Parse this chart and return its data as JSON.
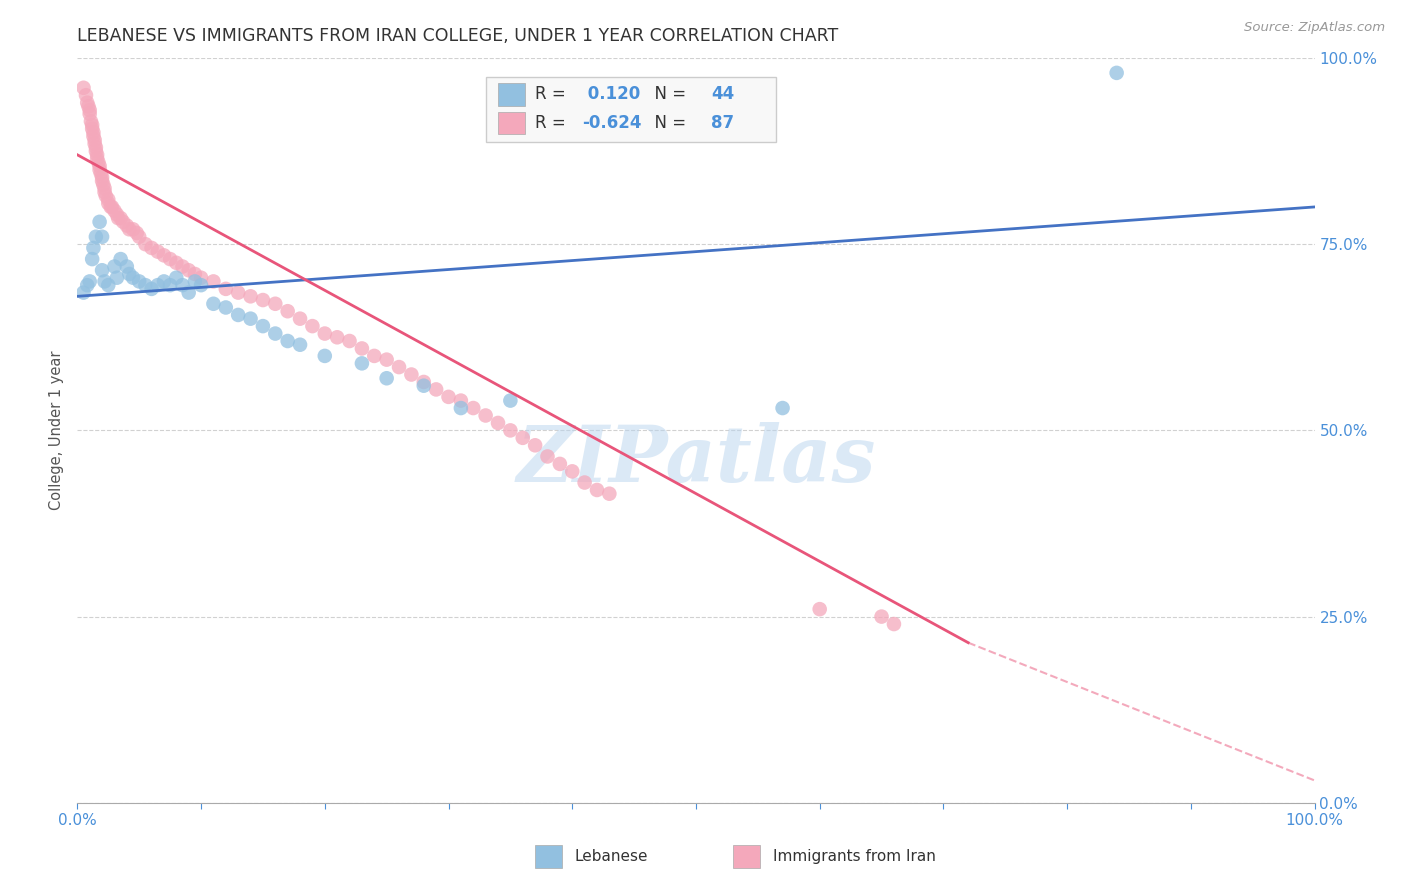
{
  "title": "LEBANESE VS IMMIGRANTS FROM IRAN COLLEGE, UNDER 1 YEAR CORRELATION CHART",
  "source": "Source: ZipAtlas.com",
  "ylabel": "College, Under 1 year",
  "xlim": [
    0.0,
    1.0
  ],
  "ylim": [
    0.0,
    1.0
  ],
  "x_ticks": [
    0.0,
    0.1,
    0.2,
    0.3,
    0.4,
    0.5,
    0.6,
    0.7,
    0.8,
    0.9,
    1.0
  ],
  "y_ticks": [
    0.0,
    0.25,
    0.5,
    0.75,
    1.0
  ],
  "y_tick_labels_right": [
    "0.0%",
    "25.0%",
    "50.0%",
    "75.0%",
    "100.0%"
  ],
  "legend_labels": [
    "Lebanese",
    "Immigrants from Iran"
  ],
  "blue_R": "0.120",
  "blue_N": "44",
  "pink_R": "-0.624",
  "pink_N": "87",
  "blue_color": "#92C0E0",
  "pink_color": "#F4A8BB",
  "blue_line_color": "#4472C4",
  "pink_line_color": "#E8557A",
  "watermark": "ZIPatlas",
  "background_color": "#FFFFFF",
  "blue_scatter": [
    [
      0.005,
      0.685
    ],
    [
      0.008,
      0.695
    ],
    [
      0.01,
      0.7
    ],
    [
      0.012,
      0.73
    ],
    [
      0.013,
      0.745
    ],
    [
      0.015,
      0.76
    ],
    [
      0.018,
      0.78
    ],
    [
      0.02,
      0.76
    ],
    [
      0.02,
      0.715
    ],
    [
      0.022,
      0.7
    ],
    [
      0.025,
      0.695
    ],
    [
      0.03,
      0.72
    ],
    [
      0.032,
      0.705
    ],
    [
      0.035,
      0.73
    ],
    [
      0.04,
      0.72
    ],
    [
      0.042,
      0.71
    ],
    [
      0.045,
      0.705
    ],
    [
      0.05,
      0.7
    ],
    [
      0.055,
      0.695
    ],
    [
      0.06,
      0.69
    ],
    [
      0.065,
      0.695
    ],
    [
      0.07,
      0.7
    ],
    [
      0.075,
      0.695
    ],
    [
      0.08,
      0.705
    ],
    [
      0.085,
      0.695
    ],
    [
      0.09,
      0.685
    ],
    [
      0.095,
      0.7
    ],
    [
      0.1,
      0.695
    ],
    [
      0.11,
      0.67
    ],
    [
      0.12,
      0.665
    ],
    [
      0.13,
      0.655
    ],
    [
      0.14,
      0.65
    ],
    [
      0.15,
      0.64
    ],
    [
      0.16,
      0.63
    ],
    [
      0.17,
      0.62
    ],
    [
      0.18,
      0.615
    ],
    [
      0.2,
      0.6
    ],
    [
      0.23,
      0.59
    ],
    [
      0.25,
      0.57
    ],
    [
      0.28,
      0.56
    ],
    [
      0.31,
      0.53
    ],
    [
      0.35,
      0.54
    ],
    [
      0.57,
      0.53
    ],
    [
      0.84,
      0.98
    ]
  ],
  "pink_scatter": [
    [
      0.005,
      0.96
    ],
    [
      0.007,
      0.95
    ],
    [
      0.008,
      0.94
    ],
    [
      0.009,
      0.935
    ],
    [
      0.01,
      0.93
    ],
    [
      0.01,
      0.925
    ],
    [
      0.011,
      0.915
    ],
    [
      0.012,
      0.91
    ],
    [
      0.012,
      0.905
    ],
    [
      0.013,
      0.9
    ],
    [
      0.013,
      0.895
    ],
    [
      0.014,
      0.89
    ],
    [
      0.014,
      0.885
    ],
    [
      0.015,
      0.88
    ],
    [
      0.015,
      0.875
    ],
    [
      0.016,
      0.87
    ],
    [
      0.016,
      0.865
    ],
    [
      0.017,
      0.86
    ],
    [
      0.018,
      0.855
    ],
    [
      0.018,
      0.85
    ],
    [
      0.019,
      0.845
    ],
    [
      0.02,
      0.84
    ],
    [
      0.02,
      0.835
    ],
    [
      0.021,
      0.83
    ],
    [
      0.022,
      0.825
    ],
    [
      0.022,
      0.82
    ],
    [
      0.023,
      0.815
    ],
    [
      0.025,
      0.81
    ],
    [
      0.025,
      0.805
    ],
    [
      0.027,
      0.8
    ],
    [
      0.028,
      0.8
    ],
    [
      0.03,
      0.795
    ],
    [
      0.032,
      0.79
    ],
    [
      0.033,
      0.785
    ],
    [
      0.035,
      0.785
    ],
    [
      0.037,
      0.78
    ],
    [
      0.04,
      0.775
    ],
    [
      0.042,
      0.77
    ],
    [
      0.045,
      0.77
    ],
    [
      0.048,
      0.765
    ],
    [
      0.05,
      0.76
    ],
    [
      0.055,
      0.75
    ],
    [
      0.06,
      0.745
    ],
    [
      0.065,
      0.74
    ],
    [
      0.07,
      0.735
    ],
    [
      0.075,
      0.73
    ],
    [
      0.08,
      0.725
    ],
    [
      0.085,
      0.72
    ],
    [
      0.09,
      0.715
    ],
    [
      0.095,
      0.71
    ],
    [
      0.1,
      0.705
    ],
    [
      0.11,
      0.7
    ],
    [
      0.12,
      0.69
    ],
    [
      0.13,
      0.685
    ],
    [
      0.14,
      0.68
    ],
    [
      0.15,
      0.675
    ],
    [
      0.16,
      0.67
    ],
    [
      0.17,
      0.66
    ],
    [
      0.18,
      0.65
    ],
    [
      0.19,
      0.64
    ],
    [
      0.2,
      0.63
    ],
    [
      0.21,
      0.625
    ],
    [
      0.22,
      0.62
    ],
    [
      0.23,
      0.61
    ],
    [
      0.24,
      0.6
    ],
    [
      0.25,
      0.595
    ],
    [
      0.26,
      0.585
    ],
    [
      0.27,
      0.575
    ],
    [
      0.28,
      0.565
    ],
    [
      0.29,
      0.555
    ],
    [
      0.3,
      0.545
    ],
    [
      0.31,
      0.54
    ],
    [
      0.32,
      0.53
    ],
    [
      0.33,
      0.52
    ],
    [
      0.34,
      0.51
    ],
    [
      0.35,
      0.5
    ],
    [
      0.36,
      0.49
    ],
    [
      0.37,
      0.48
    ],
    [
      0.38,
      0.465
    ],
    [
      0.39,
      0.455
    ],
    [
      0.4,
      0.445
    ],
    [
      0.41,
      0.43
    ],
    [
      0.42,
      0.42
    ],
    [
      0.43,
      0.415
    ],
    [
      0.6,
      0.26
    ],
    [
      0.65,
      0.25
    ],
    [
      0.66,
      0.24
    ]
  ],
  "blue_trendline": [
    [
      0.0,
      0.68
    ],
    [
      1.0,
      0.8
    ]
  ],
  "pink_trendline_solid": [
    [
      0.0,
      0.87
    ],
    [
      0.72,
      0.215
    ]
  ],
  "pink_trendline_dashed": [
    [
      0.72,
      0.215
    ],
    [
      1.0,
      0.03
    ]
  ]
}
